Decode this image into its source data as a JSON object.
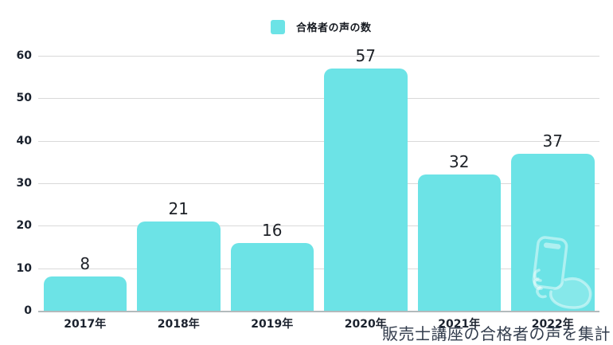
{
  "chart_data": {
    "type": "bar",
    "title": "",
    "legend": [
      "合格者の声の数"
    ],
    "legend_position": "top-center",
    "categories": [
      "2017年",
      "2018年",
      "2019年",
      "2020年",
      "2021年",
      "2022年"
    ],
    "values": [
      8,
      21,
      16,
      57,
      32,
      37
    ],
    "xlabel": "",
    "ylabel": "",
    "ylim": [
      0,
      60
    ],
    "yticks": [
      0,
      10,
      20,
      30,
      40,
      50,
      60
    ],
    "grid": "horizontal",
    "bar_color": "#6CE3E6",
    "annotation": "販売士講座の合格者の声を集計"
  },
  "legend": {
    "label": "合格者の声の数",
    "swatch_color": "#6CE3E6"
  },
  "caption": "販売士講座の合格者の声を集計",
  "colors": {
    "bar": "#6CE3E6",
    "grid": "#d9d9d9",
    "axis": "#b3babc",
    "tick_text": "#1b222e",
    "value_text": "#1e2228",
    "caption_text": "#333d4d"
  },
  "icons": {
    "watermark": "hand-holding-phone-icon"
  }
}
